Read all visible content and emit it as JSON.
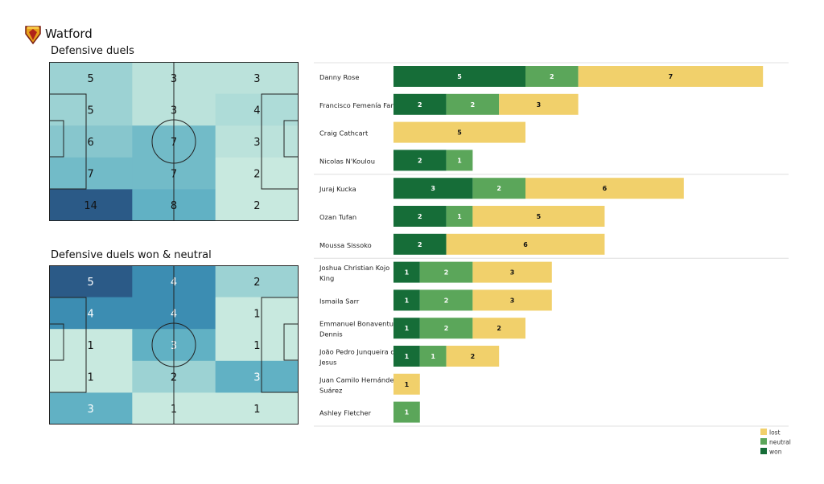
{
  "header": {
    "team": "Watford",
    "logo": "watford-crest"
  },
  "chart_data": [
    {
      "type": "heatmap",
      "title": "Defensive duels",
      "rows": 5,
      "cols": 3,
      "values": [
        [
          5,
          3,
          3
        ],
        [
          5,
          3,
          4
        ],
        [
          6,
          7,
          3
        ],
        [
          7,
          7,
          2
        ],
        [
          14,
          8,
          2
        ]
      ]
    },
    {
      "type": "heatmap",
      "title": "Defensive duels won & neutral",
      "rows": 5,
      "cols": 3,
      "values": [
        [
          5,
          4,
          2
        ],
        [
          4,
          4,
          1
        ],
        [
          1,
          3,
          1
        ],
        [
          1,
          2,
          3
        ],
        [
          3,
          1,
          1
        ]
      ]
    },
    {
      "type": "bar",
      "orientation": "horizontal",
      "stacked": true,
      "categories": [
        "Danny Rose",
        "Francisco Femenía Far",
        "Craig Cathcart",
        "Nicolas N'Koulou",
        "Juraj Kucka",
        "Ozan Tufan",
        "Moussa Sissoko",
        "Joshua Christian Kojo King",
        "Ismaila Sarr",
        "Emmanuel Bonaventure Dennis",
        "João Pedro Junqueira de Jesus",
        "Juan Camilo Hernández Suárez",
        "Ashley Fletcher"
      ],
      "groups_after_index": [
        3,
        6
      ],
      "series": [
        {
          "name": "won",
          "color": "#166d38",
          "values": [
            5,
            2,
            0,
            2,
            3,
            2,
            2,
            1,
            1,
            1,
            1,
            0,
            0
          ]
        },
        {
          "name": "neutral",
          "color": "#5ba65a",
          "values": [
            2,
            2,
            0,
            1,
            2,
            1,
            0,
            2,
            2,
            2,
            1,
            0,
            1
          ]
        },
        {
          "name": "lost",
          "color": "#f1d06b",
          "values": [
            7,
            3,
            5,
            0,
            6,
            5,
            6,
            3,
            3,
            2,
            2,
            1,
            0
          ]
        }
      ],
      "legend": {
        "position": "bottom-right",
        "order": [
          "lost",
          "neutral",
          "won"
        ]
      }
    }
  ]
}
